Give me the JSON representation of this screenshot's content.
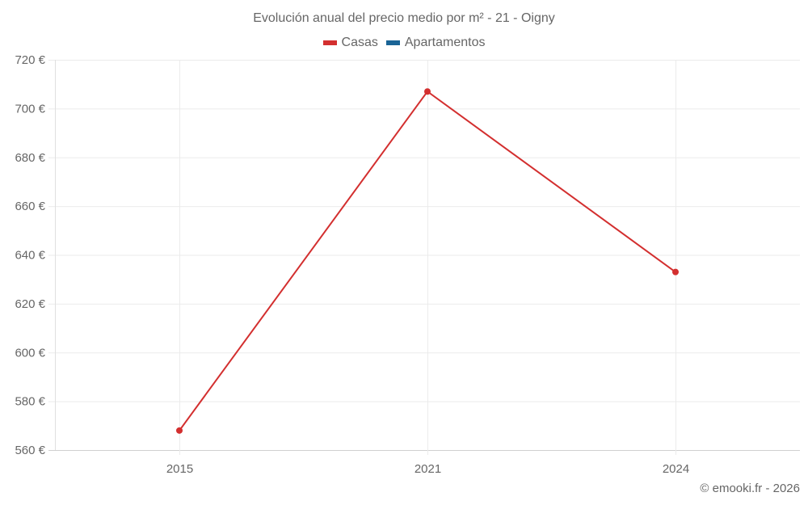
{
  "header": {
    "title": "Evolución anual del precio medio por m² - 21 - Oigny"
  },
  "legend": [
    {
      "label": "Casas",
      "color": "#d32f2f"
    },
    {
      "label": "Apartamentos",
      "color": "#1a6496"
    }
  ],
  "footer": {
    "credit": "© emooki.fr - 2026"
  },
  "chart_data": {
    "type": "line",
    "title": "Evolución anual del precio medio por m² - 21 - Oigny",
    "xlabel": "",
    "ylabel": "",
    "categories": [
      "2015",
      "2021",
      "2024"
    ],
    "series": [
      {
        "name": "Casas",
        "color": "#d32f2f",
        "values": [
          568,
          707,
          633
        ]
      },
      {
        "name": "Apartamentos",
        "color": "#1a6496",
        "values": []
      }
    ],
    "ylim": [
      560,
      720
    ],
    "yticks": [
      720,
      700,
      680,
      660,
      640,
      620,
      600,
      580,
      560
    ],
    "ytick_labels": [
      "720 €",
      "700 €",
      "680 €",
      "660 €",
      "640 €",
      "620 €",
      "600 €",
      "580 €",
      "560 €"
    ],
    "grid": true,
    "legend_position": "top"
  }
}
